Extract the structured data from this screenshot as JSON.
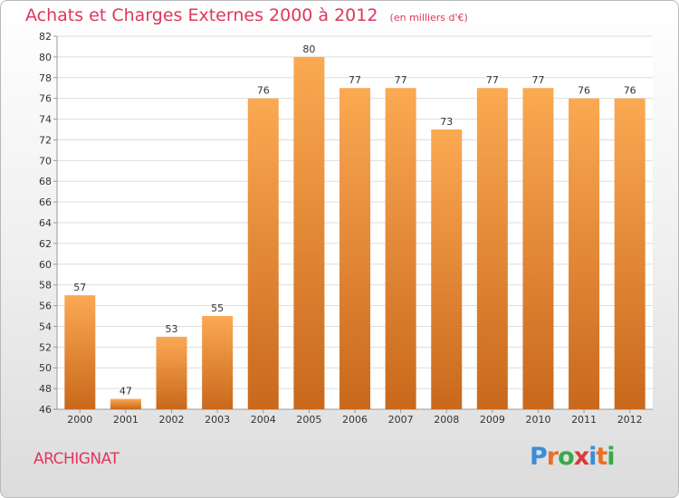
{
  "header": {
    "title": "Achats et Charges Externes 2000 à 2012",
    "subtitle": "(en milliers d'€)"
  },
  "footer": {
    "commune": "ARCHIGNAT",
    "brand": {
      "text": "Proxiti",
      "letters": [
        "P",
        "r",
        "o",
        "x",
        "i",
        "t",
        "i"
      ],
      "letter_colors": [
        "#3a8ed8",
        "#e8712a",
        "#3aa84a",
        "#d83a3a",
        "#3a8ed8",
        "#e8712a",
        "#3aa84a"
      ]
    }
  },
  "chart_data": {
    "type": "bar",
    "title": "Achats et Charges Externes 2000 à 2012",
    "subtitle": "(en milliers d'€)",
    "categories": [
      "2000",
      "2001",
      "2002",
      "2003",
      "2004",
      "2005",
      "2006",
      "2007",
      "2008",
      "2009",
      "2010",
      "2011",
      "2012"
    ],
    "values": [
      57,
      47,
      53,
      55,
      76,
      80,
      77,
      77,
      73,
      77,
      77,
      76,
      76
    ],
    "data_labels": [
      "57",
      "47",
      "53",
      "55",
      "76",
      "80",
      "77",
      "77",
      "73",
      "77",
      "77",
      "76",
      "76"
    ],
    "ylim": [
      46,
      82
    ],
    "yticks": [
      46,
      48,
      50,
      52,
      54,
      56,
      58,
      60,
      62,
      64,
      66,
      68,
      70,
      72,
      74,
      76,
      78,
      80,
      82
    ],
    "ytick_labels": [
      "46",
      "48",
      "50",
      "52",
      "54",
      "56",
      "58",
      "60",
      "62",
      "64",
      "66",
      "68",
      "70",
      "72",
      "74",
      "76",
      "78",
      "80",
      "82"
    ],
    "grid": "horizontal",
    "legend": "none",
    "colors": {
      "bar_top": "#fba953",
      "bar_bottom": "#c9681c",
      "plot_background": "#ffffff",
      "grid": "#dddddd",
      "axis": "#999999"
    }
  }
}
